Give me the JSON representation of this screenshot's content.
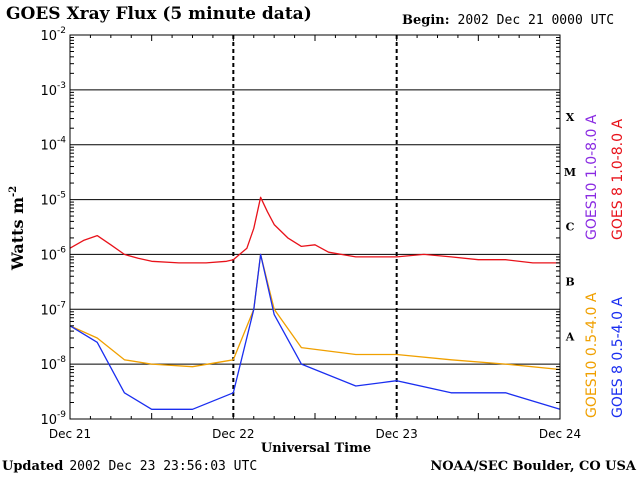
{
  "header": {
    "title": "GOES Xray Flux (5 minute data)",
    "begin_label": "Begin:",
    "begin_value": "2002 Dec 21 0000 UTC"
  },
  "footer": {
    "updated_label": "Updated",
    "updated_value": "2002 Dec 23 23:56:03 UTC",
    "credit": "NOAA/SEC Boulder, CO USA"
  },
  "colors": {
    "goes10_long": "#8a2be2",
    "goes8_long": "#e8121a",
    "goes10_short": "#f0a000",
    "goes8_short": "#1a2ef0"
  },
  "chart_data": {
    "type": "line",
    "title": "GOES Xray Flux (5 minute data)",
    "xlabel": "Universal Time",
    "ylabel": "Watts m",
    "ylabel_superscript": "-2",
    "yscale": "log",
    "ylim": [
      1e-09,
      0.01
    ],
    "xlim": [
      "2002-12-21 00:00",
      "2002-12-24 00:00"
    ],
    "x_ticks": [
      "Dec 21",
      "Dec 22",
      "Dec 23",
      "Dec 24"
    ],
    "y_ticks": [
      {
        "base": "10",
        "exp": "-2",
        "value": 0.01
      },
      {
        "base": "10",
        "exp": "-3",
        "value": 0.001
      },
      {
        "base": "10",
        "exp": "-4",
        "value": 0.0001
      },
      {
        "base": "10",
        "exp": "-5",
        "value": 1e-05
      },
      {
        "base": "10",
        "exp": "-6",
        "value": 1e-06
      },
      {
        "base": "10",
        "exp": "-7",
        "value": 1e-07
      },
      {
        "base": "10",
        "exp": "-8",
        "value": 1e-08
      },
      {
        "base": "10",
        "exp": "-9",
        "value": 1e-09
      }
    ],
    "flare_classes": [
      {
        "label": "X",
        "value": 0.00032
      },
      {
        "label": "M",
        "value": 3.2e-05
      },
      {
        "label": "C",
        "value": 3.2e-06
      },
      {
        "label": "B",
        "value": 3.2e-07
      },
      {
        "label": "A",
        "value": 3.2e-08
      }
    ],
    "grid": "horizontal decades, dashed vertical day lines",
    "legend_position": "right, vertical",
    "series": [
      {
        "name": "GOES10 1.0-8.0 A",
        "color": "#8a2be2",
        "points": []
      },
      {
        "name": "GOES 8 1.0-8.0 A",
        "color": "#e8121a",
        "points": [
          [
            "2002-12-21 00:00",
            1.3e-06
          ],
          [
            "2002-12-21 02:00",
            1.8e-06
          ],
          [
            "2002-12-21 04:00",
            2.2e-06
          ],
          [
            "2002-12-21 06:00",
            1.5e-06
          ],
          [
            "2002-12-21 08:00",
            1e-06
          ],
          [
            "2002-12-21 10:00",
            8.5e-07
          ],
          [
            "2002-12-21 12:00",
            7.5e-07
          ],
          [
            "2002-12-21 16:00",
            7e-07
          ],
          [
            "2002-12-21 20:00",
            7e-07
          ],
          [
            "2002-12-21 23:00",
            7.5e-07
          ],
          [
            "2002-12-22 00:00",
            8e-07
          ],
          [
            "2002-12-22 02:00",
            1.3e-06
          ],
          [
            "2002-12-22 03:00",
            3e-06
          ],
          [
            "2002-12-22 04:00",
            1.1e-05
          ],
          [
            "2002-12-22 05:00",
            6e-06
          ],
          [
            "2002-12-22 06:00",
            3.5e-06
          ],
          [
            "2002-12-22 08:00",
            2e-06
          ],
          [
            "2002-12-22 10:00",
            1.4e-06
          ],
          [
            "2002-12-22 12:00",
            1.5e-06
          ],
          [
            "2002-12-22 14:00",
            1.1e-06
          ],
          [
            "2002-12-22 18:00",
            9e-07
          ],
          [
            "2002-12-23 00:00",
            9e-07
          ],
          [
            "2002-12-23 04:00",
            1e-06
          ],
          [
            "2002-12-23 08:00",
            9e-07
          ],
          [
            "2002-12-23 12:00",
            8e-07
          ],
          [
            "2002-12-23 16:00",
            8e-07
          ],
          [
            "2002-12-23 20:00",
            7e-07
          ],
          [
            "2002-12-24 00:00",
            7e-07
          ]
        ]
      },
      {
        "name": "GOES10 0.5-4.0 A",
        "color": "#f0a000",
        "points": [
          [
            "2002-12-21 00:00",
            5e-08
          ],
          [
            "2002-12-21 04:00",
            3e-08
          ],
          [
            "2002-12-21 08:00",
            1.2e-08
          ],
          [
            "2002-12-21 12:00",
            1e-08
          ],
          [
            "2002-12-21 18:00",
            9e-09
          ],
          [
            "2002-12-22 00:00",
            1.2e-08
          ],
          [
            "2002-12-22 03:00",
            1e-07
          ],
          [
            "2002-12-22 04:00",
            1e-06
          ],
          [
            "2002-12-22 06:00",
            1e-07
          ],
          [
            "2002-12-22 10:00",
            2e-08
          ],
          [
            "2002-12-22 18:00",
            1.5e-08
          ],
          [
            "2002-12-23 00:00",
            1.5e-08
          ],
          [
            "2002-12-23 08:00",
            1.2e-08
          ],
          [
            "2002-12-23 16:00",
            1e-08
          ],
          [
            "2002-12-24 00:00",
            8e-09
          ]
        ]
      },
      {
        "name": "GOES 8 0.5-4.0 A",
        "color": "#1a2ef0",
        "points": [
          [
            "2002-12-21 00:00",
            5e-08
          ],
          [
            "2002-12-21 04:00",
            2.5e-08
          ],
          [
            "2002-12-21 08:00",
            3e-09
          ],
          [
            "2002-12-21 12:00",
            1.5e-09
          ],
          [
            "2002-12-21 18:00",
            1.5e-09
          ],
          [
            "2002-12-22 00:00",
            3e-09
          ],
          [
            "2002-12-22 03:00",
            1e-07
          ],
          [
            "2002-12-22 04:00",
            1e-06
          ],
          [
            "2002-12-22 06:00",
            8e-08
          ],
          [
            "2002-12-22 10:00",
            1e-08
          ],
          [
            "2002-12-22 18:00",
            4e-09
          ],
          [
            "2002-12-23 00:00",
            5e-09
          ],
          [
            "2002-12-23 08:00",
            3e-09
          ],
          [
            "2002-12-23 16:00",
            3e-09
          ],
          [
            "2002-12-24 00:00",
            1.5e-09
          ]
        ]
      }
    ]
  }
}
